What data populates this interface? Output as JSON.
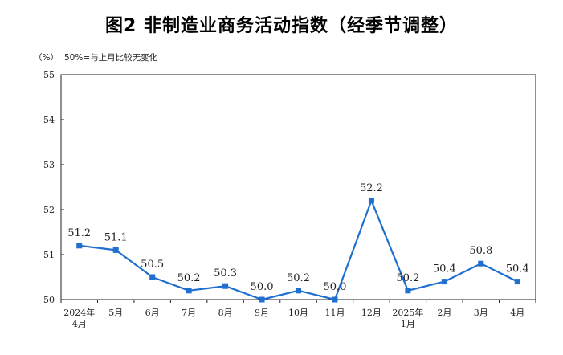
{
  "chart_data": {
    "type": "line",
    "title": "图2  非制造业商务活动指数（经季节调整）",
    "unit_label": "（%）",
    "note": "50%=与上月比较无变化",
    "categories": [
      [
        "2024年",
        "4月"
      ],
      [
        "5月"
      ],
      [
        "6月"
      ],
      [
        "7月"
      ],
      [
        "8月"
      ],
      [
        "9月"
      ],
      [
        "10月"
      ],
      [
        "11月"
      ],
      [
        "12月"
      ],
      [
        "2025年",
        "1月"
      ],
      [
        "2月"
      ],
      [
        "3月"
      ],
      [
        "4月"
      ]
    ],
    "series": [
      {
        "values": [
          51.2,
          51.1,
          50.5,
          50.2,
          50.3,
          50.0,
          50.2,
          50.0,
          52.2,
          50.2,
          50.4,
          50.8,
          50.4
        ],
        "labels": [
          "51.2",
          "51.1",
          "50.5",
          "50.2",
          "50.3",
          "50.0",
          "50.2",
          "50.0",
          "52.2",
          "50.2",
          "50.4",
          "50.8",
          "50.4"
        ]
      }
    ],
    "ylim": [
      50,
      55
    ],
    "yticks": [
      50,
      51,
      52,
      53,
      54,
      55
    ],
    "grid": false,
    "line_color": "#1f6fd0",
    "xlabel": "",
    "ylabel": ""
  }
}
